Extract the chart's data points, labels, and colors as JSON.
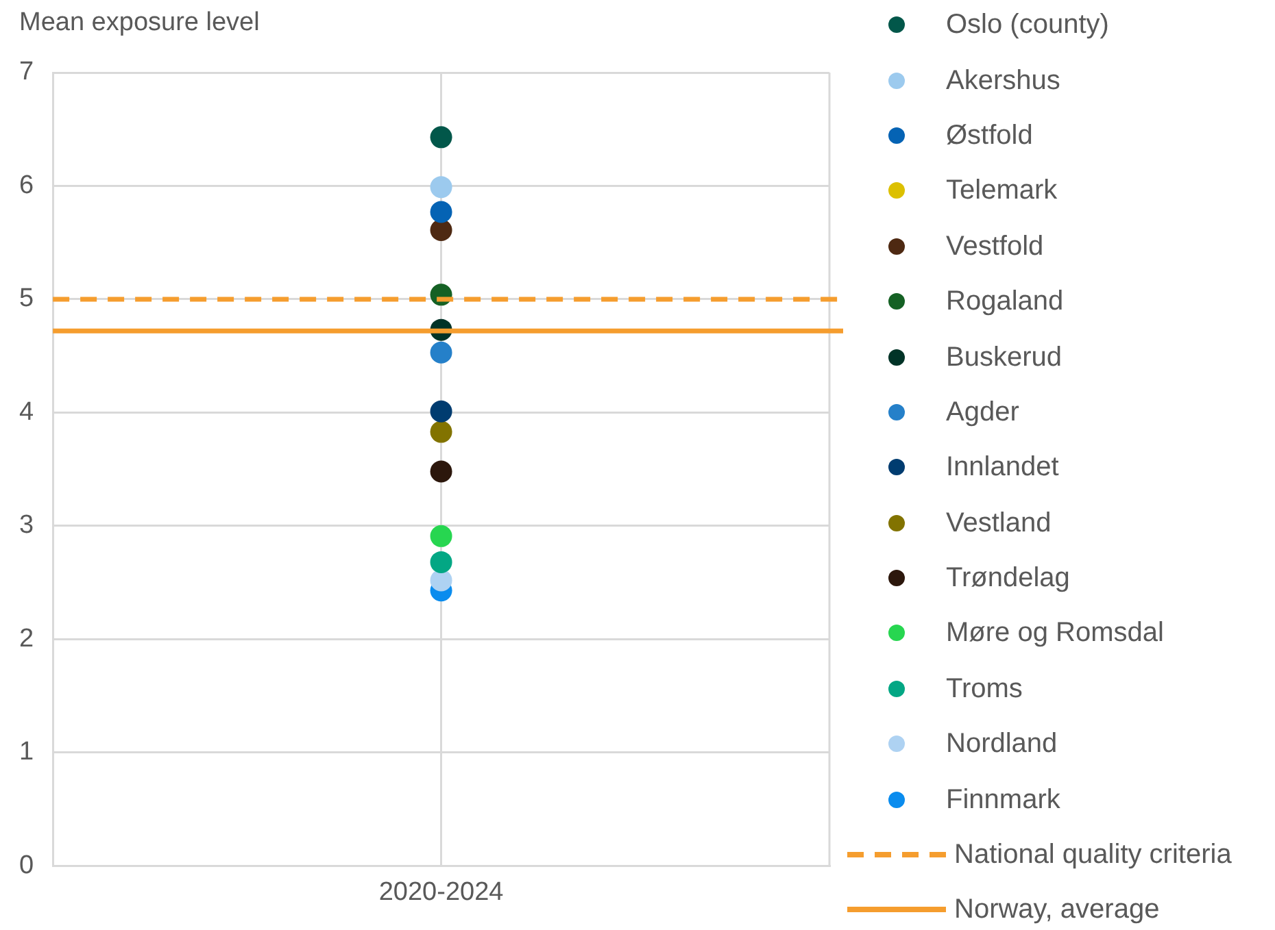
{
  "chart_data": {
    "type": "scatter",
    "ylabel": "Mean exposure level",
    "categories": [
      "2020-2024"
    ],
    "series": [
      {
        "name": "Oslo (county)",
        "color": "#02574a",
        "values": [
          6.43
        ]
      },
      {
        "name": "Akershus",
        "color": "#9ccaee",
        "values": [
          5.99
        ]
      },
      {
        "name": "Østfold",
        "color": "#0563b4",
        "values": [
          5.77
        ]
      },
      {
        "name": "Telemark",
        "color": "#dcc000",
        "values": [
          null
        ]
      },
      {
        "name": "Vestfold",
        "color": "#4e2912",
        "values": [
          5.61
        ]
      },
      {
        "name": "Rogaland",
        "color": "#156124",
        "values": [
          5.04
        ]
      },
      {
        "name": "Buskerud",
        "color": "#013327",
        "values": [
          4.73
        ]
      },
      {
        "name": "Agder",
        "color": "#2580c9",
        "values": [
          4.53
        ]
      },
      {
        "name": "Innlandet",
        "color": "#003c70",
        "values": [
          4.01
        ]
      },
      {
        "name": "Vestland",
        "color": "#827300",
        "values": [
          3.83
        ]
      },
      {
        "name": "Trøndelag",
        "color": "#2c170c",
        "values": [
          3.48
        ]
      },
      {
        "name": "Møre og Romsdal",
        "color": "#27d650",
        "values": [
          2.91
        ]
      },
      {
        "name": "Troms",
        "color": "#03a784",
        "values": [
          2.68
        ]
      },
      {
        "name": "Nordland",
        "color": "#aed2f2",
        "values": [
          2.52
        ]
      },
      {
        "name": "Finnmark",
        "color": "#0a8cee",
        "values": [
          2.43
        ]
      }
    ],
    "ref_lines": [
      {
        "axis": "y",
        "value": 5,
        "label": "National quality criteria",
        "color": "#f59d2e",
        "line_style": "dashed"
      },
      {
        "axis": "y",
        "value": 4.72,
        "label": "Norway, average",
        "color": "#f59d2e",
        "line_style": "solid"
      }
    ],
    "ylim": [
      0,
      7
    ],
    "yticks": [
      0,
      1,
      2,
      3,
      4,
      5,
      6,
      7
    ],
    "grid": true,
    "legend": "right",
    "marker": "circle"
  }
}
